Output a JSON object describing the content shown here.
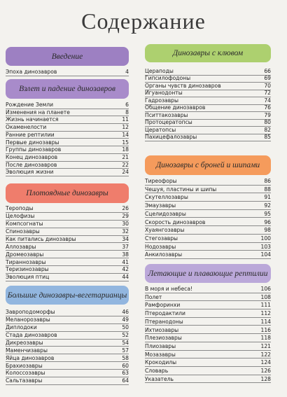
{
  "title": "Содержание",
  "sections": [
    {
      "heading": "Введение",
      "entries": [
        {
          "title": "Эпоха динозавров",
          "page": 4
        }
      ]
    },
    {
      "heading": "Взлет и падение динозавров",
      "entries": [
        {
          "title": "Рождение Земли",
          "page": 6
        },
        {
          "title": "Изменения на планете",
          "page": 8
        },
        {
          "title": "Жизнь начинается",
          "page": 11
        },
        {
          "title": "Окаменелости",
          "page": 12
        },
        {
          "title": "Ранние рептилии",
          "page": 14
        },
        {
          "title": "Первые динозавры",
          "page": 15
        },
        {
          "title": "Группы динозавров",
          "page": 18
        },
        {
          "title": "Конец динозавров",
          "page": 21
        },
        {
          "title": "После динозавров",
          "page": 22
        },
        {
          "title": "Эволюция жизни",
          "page": 24
        }
      ]
    },
    {
      "heading": "Плотоядные динозавры",
      "entries": [
        {
          "title": "Тероподы",
          "page": 26
        },
        {
          "title": "Целофизы",
          "page": 29
        },
        {
          "title": "Компсогнаты",
          "page": 30
        },
        {
          "title": "Спинозавры",
          "page": 32
        },
        {
          "title": "Как питались динозавры",
          "page": 34
        },
        {
          "title": "Аллозавры",
          "page": 37
        },
        {
          "title": "Дромеозавры",
          "page": 38
        },
        {
          "title": "Тираннозавры",
          "page": 41
        },
        {
          "title": "Теризинозавры",
          "page": 42
        },
        {
          "title": "Эволюция птиц",
          "page": 44
        }
      ]
    },
    {
      "heading": "Большие динозавры-вегетарианцы",
      "entries": [
        {
          "title": "Завроподоморфы",
          "page": 46
        },
        {
          "title": "Меланорозавры",
          "page": 49
        },
        {
          "title": "Диплодоки",
          "page": 50
        },
        {
          "title": "Стада динозавров",
          "page": 52
        },
        {
          "title": "Дикреозавры",
          "page": 54
        },
        {
          "title": "Маменчизавры",
          "page": 57
        },
        {
          "title": "Яйца динозавров",
          "page": 58
        },
        {
          "title": "Брахиозавры",
          "page": 60
        },
        {
          "title": "Колоссозавры",
          "page": 63
        },
        {
          "title": "Сальтазавры",
          "page": 64
        }
      ]
    },
    {
      "heading": "Динозавры с клювом",
      "entries": [
        {
          "title": "Цераподы",
          "page": 66
        },
        {
          "title": "Гипсилофодоны",
          "page": 69
        },
        {
          "title": "Органы чувств динозавров",
          "page": 70
        },
        {
          "title": "Игуанодонты",
          "page": 72
        },
        {
          "title": "Гадрозавры",
          "page": 74
        },
        {
          "title": "Общение динозавров",
          "page": 76
        },
        {
          "title": "Пситтакозавры",
          "page": 79
        },
        {
          "title": "Протоцератопсы",
          "page": 80
        },
        {
          "title": "Цератопсы",
          "page": 82
        },
        {
          "title": "Пахицефалозавры",
          "page": 85
        }
      ]
    },
    {
      "heading": "Динозавры с броней и шипами",
      "entries": [
        {
          "title": "Тиреофоры",
          "page": 86
        },
        {
          "title": "Чешуя, пластины и шипы",
          "page": 88
        },
        {
          "title": "Скутеллозавры",
          "page": 91
        },
        {
          "title": "Эмаузавры",
          "page": 92
        },
        {
          "title": "Сцелидозавры",
          "page": 95
        },
        {
          "title": "Скорость динозавров",
          "page": 96
        },
        {
          "title": "Хуаянгозавры",
          "page": 98
        },
        {
          "title": "Стегозавры",
          "page": 100
        },
        {
          "title": "Нодозавры",
          "page": 103
        },
        {
          "title": "Анкилозавры",
          "page": 104
        }
      ]
    },
    {
      "heading": "Летающие и плавающие рептилии",
      "entries": [
        {
          "title": "В моря и небеса!",
          "page": 106
        },
        {
          "title": "Полет",
          "page": 108
        },
        {
          "title": "Рамфоринхи",
          "page": 111
        },
        {
          "title": "Птеродактили",
          "page": 112
        },
        {
          "title": "Птеранодоны",
          "page": 114
        },
        {
          "title": "Ихтиозавры",
          "page": 116
        },
        {
          "title": "Плезиозавры",
          "page": 118
        },
        {
          "title": "Плиозавры",
          "page": 121
        },
        {
          "title": "Мозазавры",
          "page": 122
        },
        {
          "title": "Крокодилы",
          "page": 124
        },
        {
          "title": "Словарь",
          "page": 126
        },
        {
          "title": "Указатель",
          "page": 128
        }
      ]
    }
  ]
}
